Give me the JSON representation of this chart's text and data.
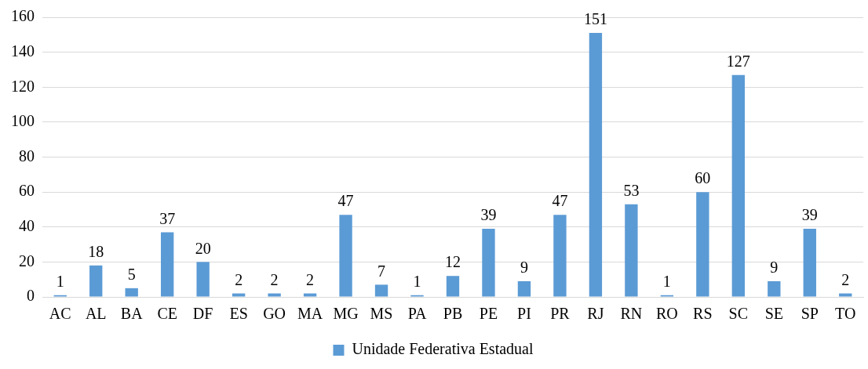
{
  "chart_data": {
    "type": "bar",
    "categories": [
      "AC",
      "AL",
      "BA",
      "CE",
      "DF",
      "ES",
      "GO",
      "MA",
      "MG",
      "MS",
      "PA",
      "PB",
      "PE",
      "PI",
      "PR",
      "RJ",
      "RN",
      "RO",
      "RS",
      "SC",
      "SE",
      "SP",
      "TO"
    ],
    "series": [
      {
        "name": "Unidade Federativa Estadual",
        "color": "#5b9bd5",
        "values": [
          1,
          18,
          5,
          37,
          20,
          2,
          2,
          2,
          47,
          7,
          1,
          12,
          39,
          9,
          47,
          151,
          53,
          1,
          60,
          127,
          9,
          39,
          2
        ]
      }
    ],
    "ylim": [
      0,
      160
    ],
    "yticks": [
      0,
      20,
      40,
      60,
      80,
      100,
      120,
      140,
      160
    ],
    "grid": "y",
    "legend": "bottom",
    "data_labels": true
  }
}
